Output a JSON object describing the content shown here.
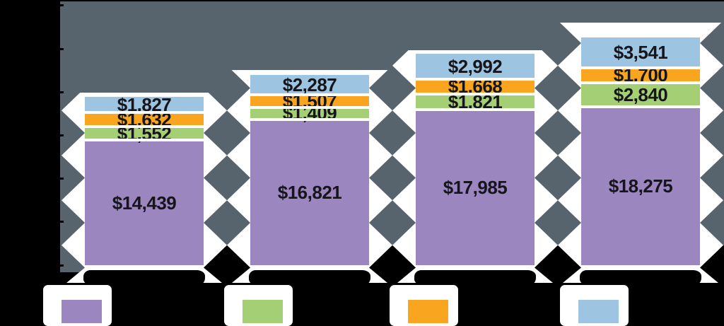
{
  "chart_data": {
    "type": "bar",
    "stacked": true,
    "orientation": "vertical",
    "categories": [
      "",
      "",
      "",
      ""
    ],
    "series": [
      {
        "name": "purple-segment",
        "color": "#9c86c0",
        "values": [
          14439,
          16821,
          17985,
          18275
        ],
        "labels": [
          "$14,439",
          "$16,821",
          "$17,985",
          "$18,275"
        ]
      },
      {
        "name": "green-segment",
        "color": "#a5cf74",
        "values": [
          1552,
          1409,
          1821,
          2840
        ],
        "labels": [
          "$1,552",
          "$1,409",
          "$1,821",
          "$2,840"
        ]
      },
      {
        "name": "orange-segment",
        "color": "#f9a51f",
        "values": [
          1632,
          1507,
          1668,
          1700
        ],
        "labels": [
          "$1,632",
          "$1,507",
          "$1,668",
          "$1,700"
        ]
      },
      {
        "name": "blue-segment",
        "color": "#9dc5e1",
        "values": [
          1827,
          2287,
          2992,
          3541
        ],
        "labels": [
          "$1,827",
          "$2,287",
          "$2,992",
          "$3,541"
        ]
      }
    ],
    "stack_order": "bottom-to-top",
    "ylim": [
      0,
      30000
    ],
    "legend_position": "bottom"
  },
  "legend": {
    "items": [
      {
        "swatch_color": "#9c86c0",
        "label": ""
      },
      {
        "swatch_color": "#a5cf74",
        "label": ""
      },
      {
        "swatch_color": "#f9a51f",
        "label": ""
      },
      {
        "swatch_color": "#9dc5e1",
        "label": ""
      }
    ]
  },
  "colors": {
    "page_background": "#000000",
    "plot_band": "#57636d",
    "bar_panel": "#ffffff",
    "value_text": "#15151b",
    "obscured_text": "#000000"
  }
}
